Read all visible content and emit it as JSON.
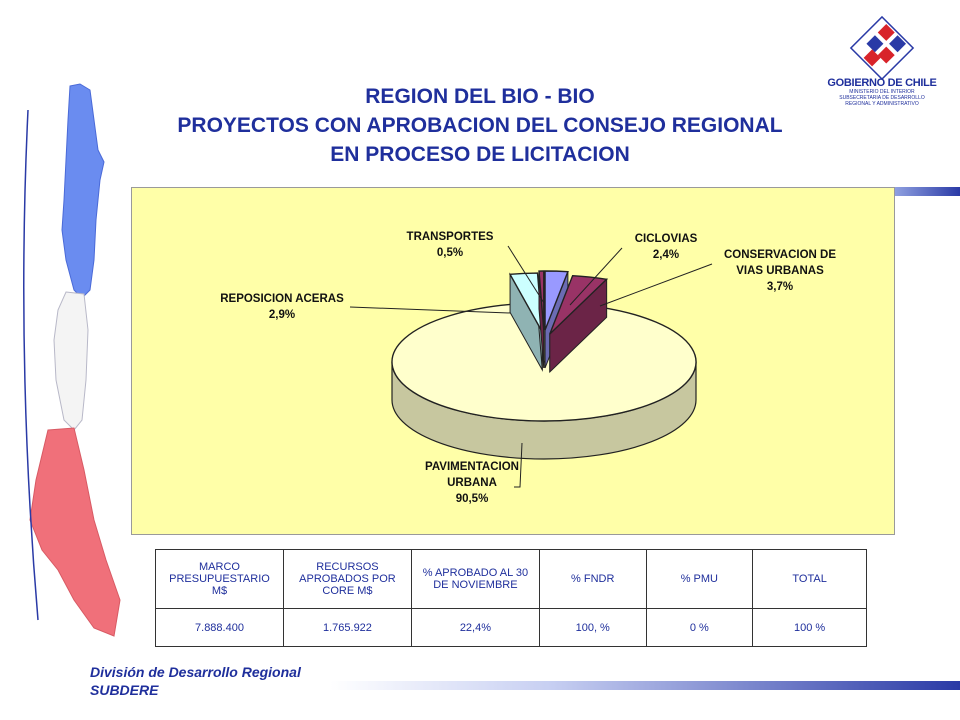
{
  "header": {
    "title_line1": "REGION DEL BIO - BIO",
    "title_line2": "PROYECTOS CON APROBACION DEL CONSEJO REGIONAL",
    "title_line3": "EN PROCESO DE LICITACION"
  },
  "logo": {
    "name": "GOBIERNO DE CHILE",
    "sub1": "MINISTERIO DEL INTERIOR",
    "sub2": "SUBSECRETARIA DE DESARROLLO",
    "sub3": "REGIONAL Y ADMINISTRATIVO"
  },
  "chart_data": {
    "type": "pie",
    "style": "3d-exploded",
    "slices": [
      {
        "label": "PAVIMENTACION URBANA",
        "value": 90.5,
        "value_label": "90,5%",
        "color": "#ffffcc"
      },
      {
        "label": "REPOSICION ACERAS",
        "value": 2.9,
        "value_label": "2,9%",
        "color": "#ccffff"
      },
      {
        "label": "TRANSPORTES",
        "value": 0.5,
        "value_label": "0,5%",
        "color": "#993366"
      },
      {
        "label": "CICLOVIAS",
        "value": 2.4,
        "value_label": "2,4%",
        "color": "#9999ff"
      },
      {
        "label": "CONSERVACION DE VIAS URBANAS",
        "value": 3.7,
        "value_label": "3,7%",
        "color": "#993366"
      }
    ],
    "background": "#ffffa8",
    "legend": "none"
  },
  "table": {
    "headers": [
      "MARCO PRESUPUESTARIO M$",
      "RECURSOS APROBADOS POR CORE M$",
      "% APROBADO AL 30 DE NOVIEMBRE",
      "% FNDR",
      "% PMU",
      "TOTAL"
    ],
    "rows": [
      [
        "7.888.400",
        "1.765.922",
        "22,4%",
        "100, %",
        "0 %",
        "100 %"
      ]
    ]
  },
  "footer": {
    "line1": "División de Desarrollo Regional",
    "line2": "SUBDERE"
  }
}
